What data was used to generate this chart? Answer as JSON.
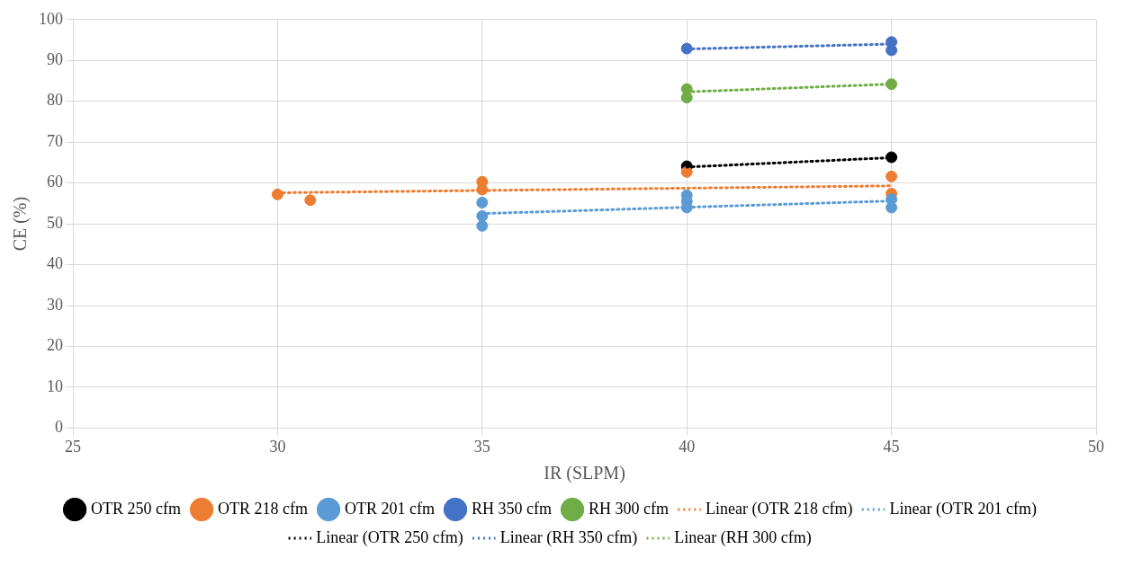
{
  "chart_data": {
    "type": "scatter",
    "xlabel": "IR (SLPM)",
    "ylabel": "CE (%)",
    "xlim": [
      25,
      50
    ],
    "xticks": [
      25,
      30,
      35,
      40,
      45,
      50
    ],
    "ylim": [
      0,
      100
    ],
    "yticks": [
      0,
      10,
      20,
      30,
      40,
      50,
      60,
      70,
      80,
      90,
      100
    ],
    "grid": true,
    "legend": "bottom",
    "marker": "circle",
    "series": [
      {
        "name": "OTR 250 cfm",
        "color": "#000000",
        "x": [
          40,
          45
        ],
        "values": [
          64.1,
          66.3
        ]
      },
      {
        "name": "OTR 218 cfm",
        "color": "#ed7d31",
        "x": [
          30,
          30.8,
          35,
          35,
          40,
          45,
          45
        ],
        "values": [
          57.2,
          55.8,
          60.3,
          58.4,
          62.7,
          61.6,
          57.4
        ]
      },
      {
        "name": "OTR 201 cfm",
        "color": "#5b9bd5",
        "x": [
          35,
          35,
          35,
          40,
          40,
          40,
          45,
          45
        ],
        "values": [
          55.2,
          51.9,
          49.5,
          57.0,
          55.5,
          54.0,
          56.0,
          54.0
        ]
      },
      {
        "name": "RH 350 cfm",
        "color": "#4472c4",
        "x": [
          40,
          45,
          45
        ],
        "values": [
          92.9,
          94.5,
          92.5
        ]
      },
      {
        "name": "RH 300 cfm",
        "color": "#70ad47",
        "x": [
          40,
          40,
          45
        ],
        "values": [
          83.0,
          80.9,
          84.2
        ]
      },
      {
        "name": "Linear (OTR 218 cfm)",
        "type": "line",
        "line_style": "dotted",
        "marker": "none",
        "color": "#ed7d31",
        "x": [
          30,
          45
        ],
        "values": [
          57.6,
          59.3
        ]
      },
      {
        "name": "Linear (OTR 201 cfm)",
        "type": "line",
        "line_style": "dotted",
        "marker": "none",
        "color": "#5b9bd5",
        "x": [
          35,
          45
        ],
        "values": [
          52.5,
          55.6
        ]
      },
      {
        "name": "Linear (OTR 250 cfm)",
        "type": "line",
        "line_style": "dotted",
        "marker": "none",
        "color": "#000000",
        "x": [
          40,
          45
        ],
        "values": [
          63.9,
          66.2
        ]
      },
      {
        "name": "Linear (RH 350 cfm)",
        "type": "line",
        "line_style": "dotted",
        "marker": "none",
        "color": "#4472c4",
        "x": [
          40,
          45
        ],
        "values": [
          92.8,
          94.0
        ]
      },
      {
        "name": "Linear (RH 300 cfm)",
        "type": "line",
        "line_style": "dotted",
        "marker": "none",
        "color": "#70ad47",
        "x": [
          40,
          45
        ],
        "values": [
          82.3,
          84.2
        ]
      }
    ]
  }
}
